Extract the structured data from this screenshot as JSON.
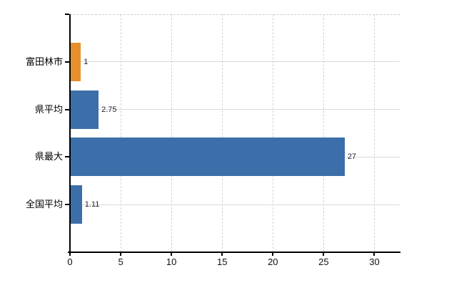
{
  "chart_data": {
    "type": "bar",
    "orientation": "horizontal",
    "title": "",
    "xlabel": "",
    "ylabel": "",
    "categories": [
      "富田林市",
      "県平均",
      "県最大",
      "全国平均"
    ],
    "values": [
      1,
      2.75,
      27,
      1.11
    ],
    "value_labels": [
      "1",
      "2.75",
      "27",
      "1.11"
    ],
    "xlim": [
      0,
      32.5
    ],
    "x_ticks": [
      0,
      5,
      10,
      15,
      20,
      25,
      30
    ],
    "x_tick_labels": [
      "0",
      "5",
      "10",
      "15",
      "20",
      "25",
      "30"
    ],
    "grid": true,
    "legend": "none",
    "colors": {
      "highlight_bar": "#e78f2c",
      "default_bar": "#3c6ea9",
      "axis": "#000000",
      "h_gridline": "#d7dcd3",
      "v_gridline": "#d6d0d0",
      "value_text": "#222233",
      "tick_text": "#111111"
    },
    "bar_color_indices": [
      "highlight_bar",
      "default_bar",
      "default_bar",
      "default_bar"
    ]
  }
}
